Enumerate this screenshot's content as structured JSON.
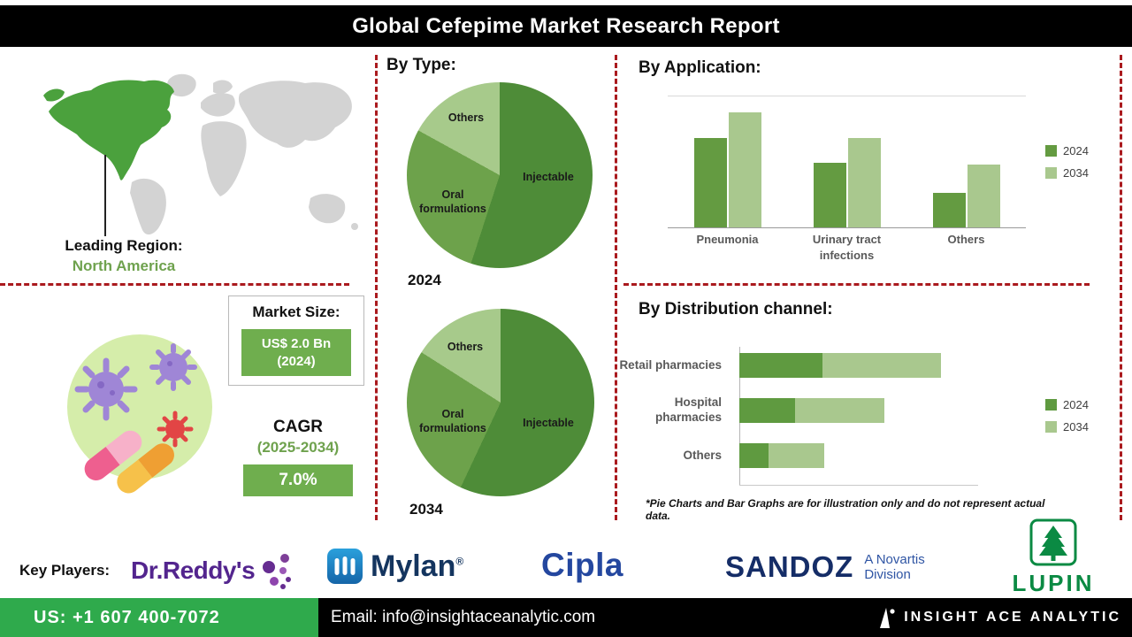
{
  "header": {
    "title": "Global Cefepime Market Research Report"
  },
  "left_panel": {
    "leading_region_label": "Leading Region:",
    "leading_region_value": "North America",
    "market_size": {
      "label": "Market Size:",
      "value_line1": "US$ 2.0 Bn",
      "value_line2": "(2024)"
    },
    "cagr": {
      "label": "CAGR",
      "period": "(2025-2034)",
      "value": "7.0%"
    }
  },
  "sections": {
    "by_type": {
      "title": "By Type:"
    },
    "by_application": {
      "title": "By Application:"
    },
    "by_distribution": {
      "title": "By Distribution channel:"
    },
    "footnote": "*Pie Charts and Bar Graphs are for illustration only and do not represent actual data."
  },
  "chart_data": [
    {
      "id": "by-type-2024",
      "type": "pie",
      "year_label": "2024",
      "slices": [
        {
          "label": "Injectable",
          "value": 55,
          "color": "#4e8c38"
        },
        {
          "label": "Oral formulations",
          "value": 28,
          "color": "#6da24b"
        },
        {
          "label": "Others",
          "value": 17,
          "color": "#a7ca8b"
        }
      ],
      "note": "illustrative only"
    },
    {
      "id": "by-type-2034",
      "type": "pie",
      "year_label": "2034",
      "slices": [
        {
          "label": "Injectable",
          "value": 57,
          "color": "#4e8c38"
        },
        {
          "label": "Oral formulations",
          "value": 27,
          "color": "#6da24b"
        },
        {
          "label": "Others",
          "value": 16,
          "color": "#a7ca8b"
        }
      ],
      "note": "illustrative only"
    },
    {
      "id": "by-application",
      "type": "bar",
      "title": "By Application:",
      "categories": [
        "Pneumonia",
        "Urinary tract infections",
        "Others"
      ],
      "series": [
        {
          "name": "2024",
          "color": "#649b41",
          "values": [
            75,
            54,
            29
          ]
        },
        {
          "name": "2034",
          "color": "#a9c88e",
          "values": [
            97,
            75,
            53
          ]
        }
      ],
      "ylim": [
        0,
        110
      ],
      "grid": "top-and-baseline",
      "legend_position": "right",
      "note": "illustrative only"
    },
    {
      "id": "by-distribution",
      "type": "bar-horizontal-stacked",
      "title": "By Distribution channel:",
      "categories": [
        "Retail pharmacies",
        "Hospital pharmacies",
        "Others"
      ],
      "series": [
        {
          "name": "2024",
          "color": "#5f9a40",
          "values": [
            40,
            27,
            14
          ]
        },
        {
          "name": "2034",
          "color": "#a9c88e",
          "values": [
            57,
            43,
            27
          ]
        }
      ],
      "xlim": [
        0,
        100
      ],
      "legend_position": "right",
      "note": "illustrative only"
    }
  ],
  "key_players": {
    "label": "Key Players:",
    "dr_reddys": "Dr.Reddy's",
    "mylan": "Mylan",
    "mylan_reg": "®",
    "cipla": "Cipla",
    "sandoz": "SANDOZ",
    "sandoz_sub": "A Novartis Division",
    "lupin": "LUPIN"
  },
  "footer": {
    "phone": "US: +1 607 400-7072",
    "email": "Email: info@insightaceanalytic.com",
    "brand": "INSIGHT ACE ANALYTIC"
  },
  "colors": {
    "accent_red_dashed": "#aa1a1e",
    "green_dark": "#4e8c38",
    "green_mid": "#6da24b",
    "green_light": "#a7ca8b",
    "green_box": "#6fae4e",
    "footer_green": "#2faa4c",
    "map_highlight": "#4ba13d",
    "map_gray": "#d3d3d3"
  }
}
